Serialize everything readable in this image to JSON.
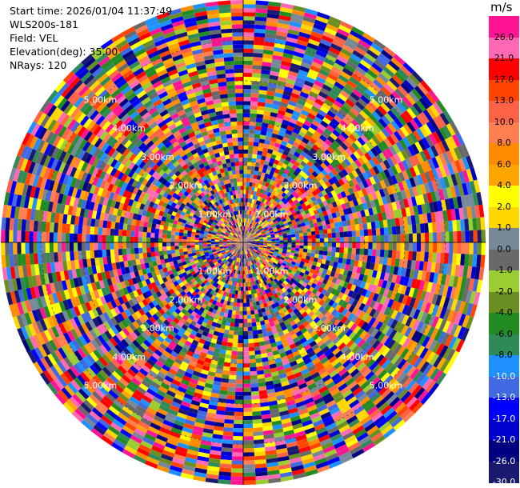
{
  "info": {
    "start_time": "Start time: 2026/01/04 11:37:49",
    "instrument": "WLS200s-181",
    "field": "Field: VEL",
    "elevation": "Elevation(deg): 35.00",
    "nrays": "NRays: 120"
  },
  "colorbar": {
    "unit": "m/s",
    "labels": [
      "26.0",
      "21.0",
      "17.0",
      "13.0",
      "10.0",
      "8.0",
      "6.0",
      "4.0",
      "2.0",
      "1.0",
      "0.0",
      "-1.0",
      "-2.0",
      "-4.0",
      "-6.0",
      "-8.0",
      "-10.0",
      "-13.0",
      "-17.0",
      "-21.0",
      "-26.0",
      "-30.0"
    ],
    "colors": [
      "#ff1493",
      "#ff69b4",
      "#ff0000",
      "#ff4500",
      "#ff6347",
      "#ff7f50",
      "#ff8c00",
      "#ffa500",
      "#ffff00",
      "#ffd700",
      "#778899",
      "#696969",
      "#9acd32",
      "#6b8e23",
      "#228b22",
      "#2e8b57",
      "#1e90ff",
      "#4169e1",
      "#0000ff",
      "#0000cd",
      "#000080",
      "#191970"
    ]
  },
  "chart_data": {
    "type": "heatmap",
    "field": "VEL",
    "elevation_deg": 35.0,
    "n_rays": 120,
    "range_ring_labels": [
      "1.00km",
      "2.00km",
      "3.00km",
      "4.00km",
      "5.00km"
    ],
    "range_rings_km": [
      1,
      2,
      3,
      4,
      5
    ],
    "max_range_km": 6,
    "value_range": [
      -30,
      30
    ]
  }
}
